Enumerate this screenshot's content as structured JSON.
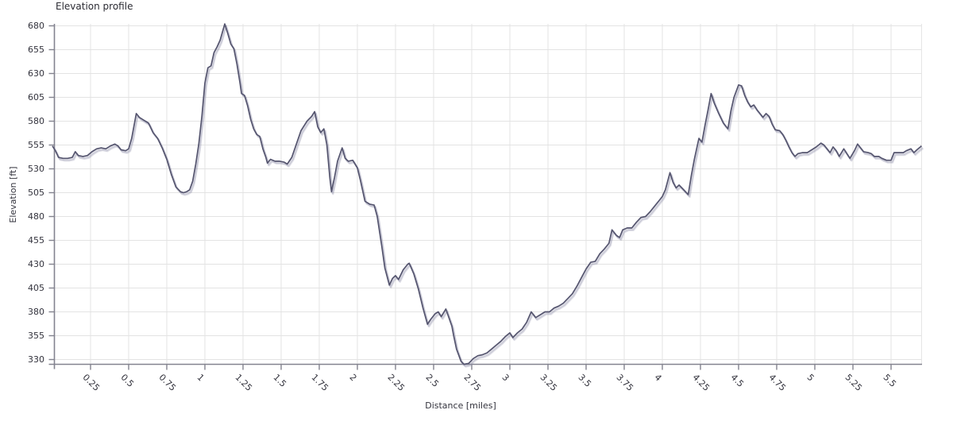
{
  "chart": {
    "title": "Elevation profile",
    "xlabel": "Distance [miles]",
    "ylabel": "Elevation [ft]"
  },
  "chart_data": {
    "type": "line",
    "title": "Elevation profile",
    "xlabel": "Distance [miles]",
    "ylabel": "Elevation [ft]",
    "legend": "none",
    "grid": true,
    "xlim": [
      0,
      5.7
    ],
    "ylim": [
      326,
      684
    ],
    "x_ticks": [
      0.25,
      0.5,
      0.75,
      1,
      1.25,
      1.5,
      1.75,
      2,
      2.25,
      2.5,
      2.75,
      3,
      3.25,
      3.5,
      3.75,
      4,
      4.25,
      4.5,
      4.75,
      5,
      5.25,
      5.5
    ],
    "y_ticks": [
      330,
      355,
      380,
      405,
      430,
      455,
      480,
      505,
      530,
      555,
      580,
      605,
      630,
      655,
      680
    ],
    "line_color": "#55556f",
    "shadow_color": "#8f8fa8",
    "grid_color": "#e3e3e3",
    "axis_color": "#83838f",
    "text_color": "#33333d",
    "series": [
      {
        "name": "elevation",
        "points": [
          [
            0.0,
            554
          ],
          [
            0.02,
            549
          ],
          [
            0.04,
            542
          ],
          [
            0.07,
            541
          ],
          [
            0.1,
            541
          ],
          [
            0.13,
            542
          ],
          [
            0.15,
            548
          ],
          [
            0.17,
            544
          ],
          [
            0.2,
            543
          ],
          [
            0.23,
            544
          ],
          [
            0.26,
            548
          ],
          [
            0.29,
            551
          ],
          [
            0.32,
            552
          ],
          [
            0.35,
            551
          ],
          [
            0.38,
            554
          ],
          [
            0.41,
            556
          ],
          [
            0.43,
            554
          ],
          [
            0.45,
            550
          ],
          [
            0.48,
            549
          ],
          [
            0.5,
            551
          ],
          [
            0.52,
            562
          ],
          [
            0.55,
            588
          ],
          [
            0.57,
            584
          ],
          [
            0.6,
            581
          ],
          [
            0.63,
            578
          ],
          [
            0.66,
            568
          ],
          [
            0.69,
            562
          ],
          [
            0.72,
            552
          ],
          [
            0.75,
            540
          ],
          [
            0.78,
            524
          ],
          [
            0.81,
            511
          ],
          [
            0.84,
            506
          ],
          [
            0.86,
            505
          ],
          [
            0.88,
            506
          ],
          [
            0.9,
            508
          ],
          [
            0.92,
            517
          ],
          [
            0.94,
            535
          ],
          [
            0.96,
            556
          ],
          [
            0.98,
            585
          ],
          [
            1.0,
            620
          ],
          [
            1.02,
            636
          ],
          [
            1.04,
            638
          ],
          [
            1.06,
            652
          ],
          [
            1.08,
            658
          ],
          [
            1.1,
            665
          ],
          [
            1.13,
            682
          ],
          [
            1.15,
            672
          ],
          [
            1.17,
            661
          ],
          [
            1.19,
            656
          ],
          [
            1.21,
            640
          ],
          [
            1.23,
            620
          ],
          [
            1.24,
            609
          ],
          [
            1.26,
            607
          ],
          [
            1.28,
            596
          ],
          [
            1.3,
            582
          ],
          [
            1.32,
            572
          ],
          [
            1.34,
            566
          ],
          [
            1.36,
            564
          ],
          [
            1.38,
            551
          ],
          [
            1.4,
            542
          ],
          [
            1.41,
            536
          ],
          [
            1.43,
            540
          ],
          [
            1.46,
            538
          ],
          [
            1.49,
            538
          ],
          [
            1.52,
            537
          ],
          [
            1.54,
            535
          ],
          [
            1.57,
            542
          ],
          [
            1.6,
            556
          ],
          [
            1.63,
            570
          ],
          [
            1.67,
            580
          ],
          [
            1.7,
            585
          ],
          [
            1.72,
            590
          ],
          [
            1.74,
            574
          ],
          [
            1.76,
            568
          ],
          [
            1.78,
            572
          ],
          [
            1.8,
            555
          ],
          [
            1.82,
            520
          ],
          [
            1.83,
            506
          ],
          [
            1.85,
            521
          ],
          [
            1.87,
            538
          ],
          [
            1.9,
            552
          ],
          [
            1.92,
            541
          ],
          [
            1.94,
            538
          ],
          [
            1.97,
            539
          ],
          [
            2.0,
            531
          ],
          [
            2.02,
            518
          ],
          [
            2.05,
            496
          ],
          [
            2.08,
            493
          ],
          [
            2.11,
            492
          ],
          [
            2.13,
            480
          ],
          [
            2.16,
            449
          ],
          [
            2.18,
            426
          ],
          [
            2.21,
            408
          ],
          [
            2.23,
            415
          ],
          [
            2.25,
            418
          ],
          [
            2.27,
            414
          ],
          [
            2.3,
            424
          ],
          [
            2.33,
            430
          ],
          [
            2.34,
            431
          ],
          [
            2.37,
            420
          ],
          [
            2.4,
            404
          ],
          [
            2.43,
            384
          ],
          [
            2.46,
            367
          ],
          [
            2.48,
            372
          ],
          [
            2.51,
            378
          ],
          [
            2.53,
            380
          ],
          [
            2.55,
            375
          ],
          [
            2.58,
            383
          ],
          [
            2.6,
            374
          ],
          [
            2.62,
            365
          ],
          [
            2.63,
            356
          ],
          [
            2.65,
            341
          ],
          [
            2.68,
            328
          ],
          [
            2.7,
            325
          ],
          [
            2.73,
            326
          ],
          [
            2.76,
            331
          ],
          [
            2.79,
            334
          ],
          [
            2.82,
            335
          ],
          [
            2.85,
            337
          ],
          [
            2.88,
            341
          ],
          [
            2.91,
            345
          ],
          [
            2.94,
            349
          ],
          [
            2.97,
            354
          ],
          [
            3.0,
            358
          ],
          [
            3.02,
            353
          ],
          [
            3.05,
            358
          ],
          [
            3.08,
            362
          ],
          [
            3.11,
            369
          ],
          [
            3.14,
            380
          ],
          [
            3.17,
            374
          ],
          [
            3.2,
            377
          ],
          [
            3.23,
            380
          ],
          [
            3.26,
            380
          ],
          [
            3.29,
            384
          ],
          [
            3.32,
            386
          ],
          [
            3.35,
            389
          ],
          [
            3.38,
            394
          ],
          [
            3.41,
            399
          ],
          [
            3.44,
            407
          ],
          [
            3.47,
            416
          ],
          [
            3.5,
            425
          ],
          [
            3.53,
            432
          ],
          [
            3.56,
            433
          ],
          [
            3.59,
            441
          ],
          [
            3.62,
            446
          ],
          [
            3.65,
            452
          ],
          [
            3.67,
            466
          ],
          [
            3.7,
            460
          ],
          [
            3.72,
            458
          ],
          [
            3.74,
            466
          ],
          [
            3.77,
            468
          ],
          [
            3.8,
            468
          ],
          [
            3.83,
            474
          ],
          [
            3.86,
            479
          ],
          [
            3.89,
            480
          ],
          [
            3.92,
            485
          ],
          [
            3.95,
            491
          ],
          [
            3.98,
            497
          ],
          [
            4.0,
            501
          ],
          [
            4.02,
            508
          ],
          [
            4.05,
            526
          ],
          [
            4.07,
            516
          ],
          [
            4.09,
            510
          ],
          [
            4.11,
            513
          ],
          [
            4.14,
            508
          ],
          [
            4.17,
            503
          ],
          [
            4.19,
            523
          ],
          [
            4.21,
            540
          ],
          [
            4.23,
            555
          ],
          [
            4.24,
            562
          ],
          [
            4.26,
            558
          ],
          [
            4.28,
            576
          ],
          [
            4.3,
            592
          ],
          [
            4.32,
            609
          ],
          [
            4.34,
            599
          ],
          [
            4.37,
            588
          ],
          [
            4.4,
            578
          ],
          [
            4.43,
            572
          ],
          [
            4.45,
            591
          ],
          [
            4.47,
            605
          ],
          [
            4.5,
            618
          ],
          [
            4.52,
            617
          ],
          [
            4.54,
            607
          ],
          [
            4.56,
            600
          ],
          [
            4.58,
            595
          ],
          [
            4.6,
            597
          ],
          [
            4.62,
            592
          ],
          [
            4.64,
            588
          ],
          [
            4.66,
            584
          ],
          [
            4.68,
            588
          ],
          [
            4.7,
            585
          ],
          [
            4.72,
            577
          ],
          [
            4.74,
            571
          ],
          [
            4.77,
            570
          ],
          [
            4.79,
            566
          ],
          [
            4.81,
            560
          ],
          [
            4.83,
            553
          ],
          [
            4.85,
            547
          ],
          [
            4.87,
            543
          ],
          [
            4.89,
            546
          ],
          [
            4.92,
            547
          ],
          [
            4.95,
            547
          ],
          [
            4.98,
            550
          ],
          [
            5.01,
            553
          ],
          [
            5.04,
            557
          ],
          [
            5.06,
            555
          ],
          [
            5.08,
            551
          ],
          [
            5.1,
            547
          ],
          [
            5.12,
            553
          ],
          [
            5.14,
            549
          ],
          [
            5.16,
            543
          ],
          [
            5.19,
            551
          ],
          [
            5.21,
            546
          ],
          [
            5.23,
            541
          ],
          [
            5.26,
            549
          ],
          [
            5.28,
            556
          ],
          [
            5.3,
            552
          ],
          [
            5.32,
            548
          ],
          [
            5.35,
            547
          ],
          [
            5.37,
            546
          ],
          [
            5.39,
            543
          ],
          [
            5.42,
            543
          ],
          [
            5.44,
            541
          ],
          [
            5.47,
            539
          ],
          [
            5.5,
            539
          ],
          [
            5.52,
            547
          ],
          [
            5.55,
            547
          ],
          [
            5.58,
            547
          ],
          [
            5.6,
            549
          ],
          [
            5.63,
            551
          ],
          [
            5.65,
            547
          ],
          [
            5.67,
            550
          ],
          [
            5.7,
            554
          ]
        ]
      }
    ]
  }
}
